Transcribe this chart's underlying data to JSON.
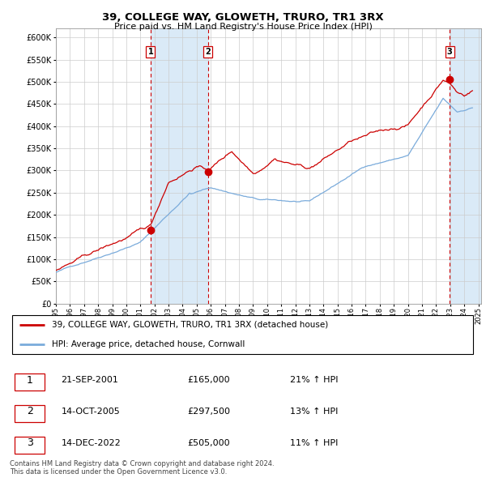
{
  "title": "39, COLLEGE WAY, GLOWETH, TRURO, TR1 3RX",
  "subtitle": "Price paid vs. HM Land Registry's House Price Index (HPI)",
  "yticks": [
    0,
    50000,
    100000,
    150000,
    200000,
    250000,
    300000,
    350000,
    400000,
    450000,
    500000,
    550000,
    600000
  ],
  "ylim": [
    0,
    620000
  ],
  "xlim_start": 1995.3,
  "xlim_end": 2025.2,
  "transaction_color": "#cc0000",
  "hpi_color": "#7aabdb",
  "shaded_region_color": "#daeaf7",
  "vline_color": "#cc0000",
  "transactions": [
    {
      "date": 2001.72,
      "price": 165000,
      "label": "1"
    },
    {
      "date": 2005.79,
      "price": 297500,
      "label": "2"
    },
    {
      "date": 2022.96,
      "price": 505000,
      "label": "3"
    }
  ],
  "table_rows": [
    {
      "num": "1",
      "date": "21-SEP-2001",
      "price": "£165,000",
      "change": "21% ↑ HPI"
    },
    {
      "num": "2",
      "date": "14-OCT-2005",
      "price": "£297,500",
      "change": "13% ↑ HPI"
    },
    {
      "num": "3",
      "date": "14-DEC-2022",
      "price": "£505,000",
      "change": "11% ↑ HPI"
    }
  ],
  "legend_entries": [
    "39, COLLEGE WAY, GLOWETH, TRURO, TR1 3RX (detached house)",
    "HPI: Average price, detached house, Cornwall"
  ],
  "footnote": "Contains HM Land Registry data © Crown copyright and database right 2024.\nThis data is licensed under the Open Government Licence v3.0."
}
